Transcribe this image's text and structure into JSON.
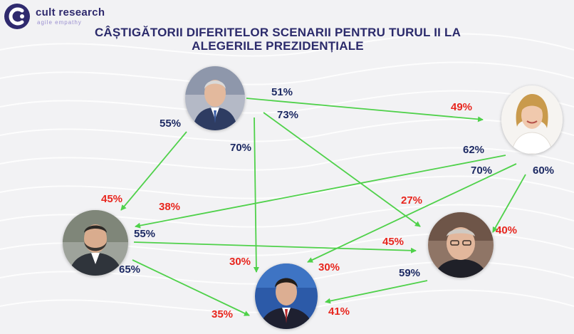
{
  "brand": {
    "name": "cult research",
    "tagline": "agile empathy"
  },
  "title": {
    "line1": "CÂȘTIGĂTORII DIFERITELOR SCENARII PENTRU TURUL II LA",
    "line2": "ALEGERILE PREZIDENȚIALE"
  },
  "colors": {
    "navy": "#1d2a63",
    "red": "#e8261e",
    "arrow": "#4fd14a",
    "title": "#2b2a6b"
  },
  "candidates": [
    {
      "id": "top",
      "icon": "portrait-man-grey-hair"
    },
    {
      "id": "right",
      "icon": "portrait-woman-blonde"
    },
    {
      "id": "left",
      "icon": "portrait-man-beard"
    },
    {
      "id": "bottom_right",
      "icon": "portrait-man-elderly"
    },
    {
      "id": "bottom",
      "icon": "portrait-man-dark-hair"
    }
  ],
  "labels": {
    "l51": "51%",
    "l49": "49%",
    "l73": "73%",
    "l55a": "55%",
    "l70a": "70%",
    "l62": "62%",
    "l70b": "70%",
    "l60": "60%",
    "l45a": "45%",
    "l38": "38%",
    "l27": "27%",
    "l55b": "55%",
    "l40": "40%",
    "l45b": "45%",
    "l30a": "30%",
    "l30b": "30%",
    "l65": "65%",
    "l59": "59%",
    "l35": "35%",
    "l41": "41%"
  }
}
